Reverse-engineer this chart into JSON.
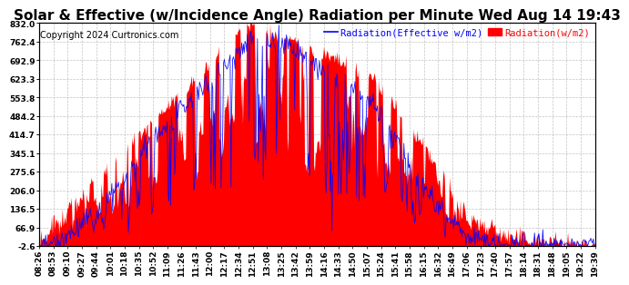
{
  "title": "Solar & Effective (w/Incidence Angle) Radiation per Minute Wed Aug 14 19:43",
  "copyright": "Copyright 2024 Curtronics.com",
  "legend_blue": "Radiation(Effective w/m2)",
  "legend_red": "Radiation(w/m2)",
  "yticks": [
    832.0,
    762.4,
    692.9,
    623.3,
    553.8,
    484.2,
    414.7,
    345.1,
    275.6,
    206.0,
    136.5,
    66.9,
    -2.6
  ],
  "ymin": -2.6,
  "ymax": 832.0,
  "xtick_labels": [
    "08:26",
    "08:53",
    "09:10",
    "09:27",
    "09:44",
    "10:01",
    "10:18",
    "10:35",
    "10:52",
    "11:09",
    "11:26",
    "11:43",
    "12:00",
    "12:17",
    "12:34",
    "12:51",
    "13:08",
    "13:25",
    "13:42",
    "13:59",
    "14:16",
    "14:33",
    "14:50",
    "15:07",
    "15:24",
    "15:41",
    "15:58",
    "16:15",
    "16:32",
    "16:49",
    "17:06",
    "17:23",
    "17:40",
    "17:57",
    "18:14",
    "18:31",
    "18:48",
    "19:05",
    "19:22",
    "19:39"
  ],
  "bg_color": "#ffffff",
  "plot_bg_color": "#ffffff",
  "red_color": "#ff0000",
  "blue_color": "#0000ff",
  "grid_color": "#aaaaaa",
  "title_fontsize": 11,
  "copyright_fontsize": 7,
  "legend_fontsize": 7.5,
  "tick_fontsize": 6.5
}
